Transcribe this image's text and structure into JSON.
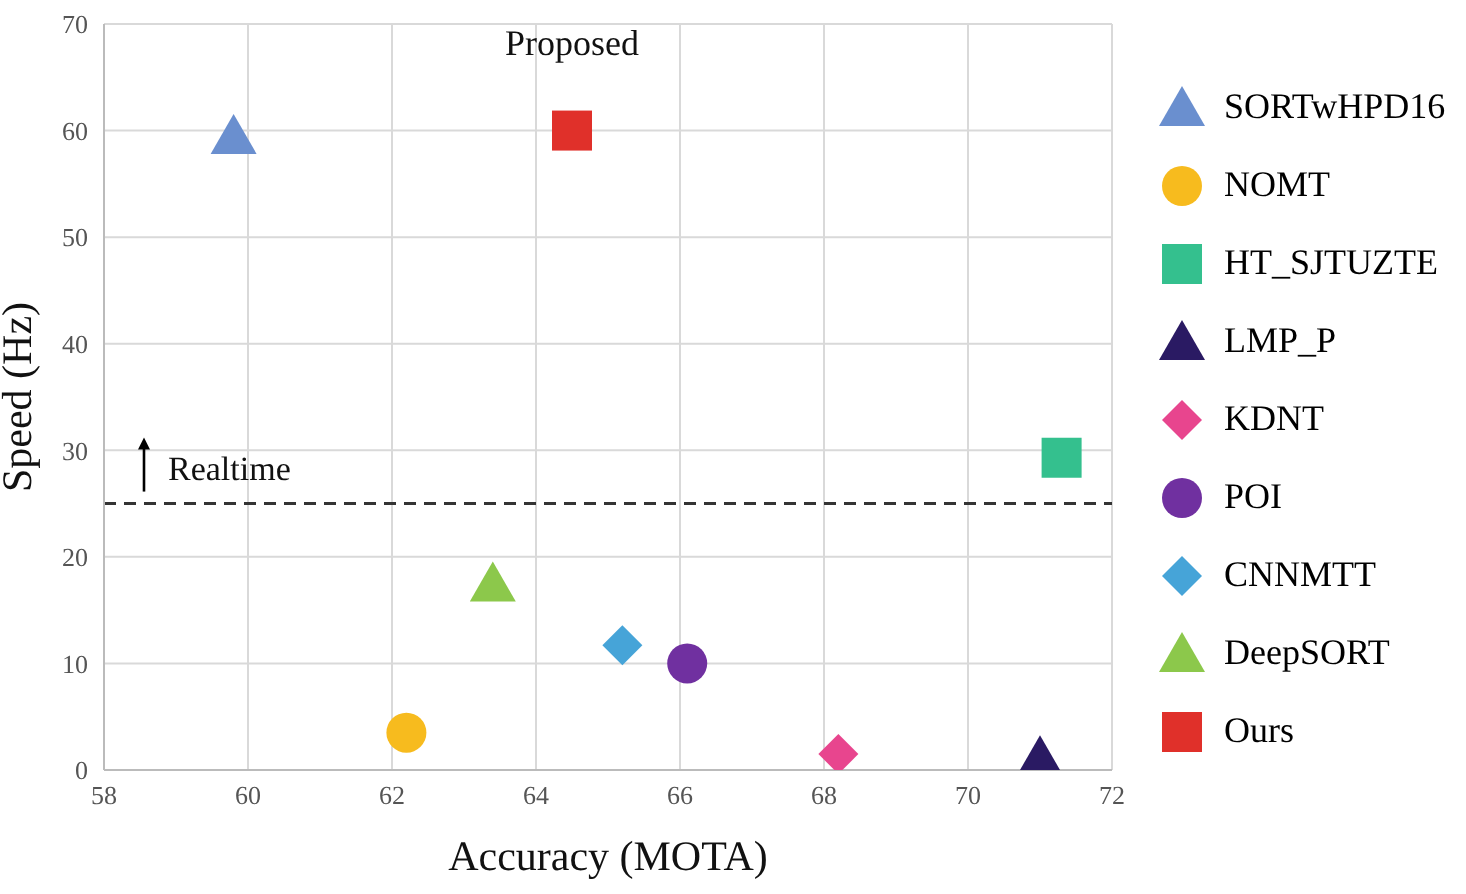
{
  "chart_data": {
    "type": "scatter",
    "xlabel": "Accuracy (MOTA)",
    "ylabel": "Speed (Hz)",
    "xlim": [
      58,
      72
    ],
    "xticks": [
      58,
      60,
      62,
      64,
      66,
      68,
      70,
      72
    ],
    "ylim": [
      0,
      70
    ],
    "yticks": [
      0,
      10,
      20,
      30,
      40,
      50,
      60,
      70
    ],
    "grid": true,
    "legend": "right",
    "series": [
      {
        "name": "SORTwHPD16",
        "color": "#6a8fcf",
        "marker": "triangle",
        "x": [
          59.8
        ],
        "values": [
          59.5
        ]
      },
      {
        "name": "NOMT",
        "color": "#f7bb1e",
        "marker": "circle",
        "x": [
          62.2
        ],
        "values": [
          3.5
        ]
      },
      {
        "name": "HT_SJTUZTE",
        "color": "#34c08e",
        "marker": "square",
        "x": [
          71.3
        ],
        "values": [
          29.3
        ]
      },
      {
        "name": "LMP_P",
        "color": "#2a1a63",
        "marker": "triangle",
        "x": [
          71
        ],
        "values": [
          1.2
        ]
      },
      {
        "name": "KDNT",
        "color": "#e8458e",
        "marker": "diamond",
        "x": [
          68.2
        ],
        "values": [
          1.5
        ]
      },
      {
        "name": "POI",
        "color": "#7030a0",
        "marker": "circle",
        "x": [
          66.1
        ],
        "values": [
          10
        ]
      },
      {
        "name": "CNNMTT",
        "color": "#46a4d8",
        "marker": "diamond",
        "x": [
          65.2
        ],
        "values": [
          11.7
        ]
      },
      {
        "name": "DeepSORT",
        "color": "#8cc84b",
        "marker": "triangle",
        "x": [
          63.4
        ],
        "values": [
          17.5
        ]
      },
      {
        "name": "Ours",
        "color": "#e0302a",
        "marker": "square",
        "x": [
          64.5
        ],
        "values": [
          60
        ]
      }
    ],
    "ref_lines": [
      {
        "axis": "y",
        "value": 25,
        "label": "Realtime",
        "color": "#333333",
        "line_style": "dashed"
      }
    ],
    "annotations": [
      {
        "text": "Proposed",
        "x": 64.5,
        "y": 60
      }
    ]
  }
}
